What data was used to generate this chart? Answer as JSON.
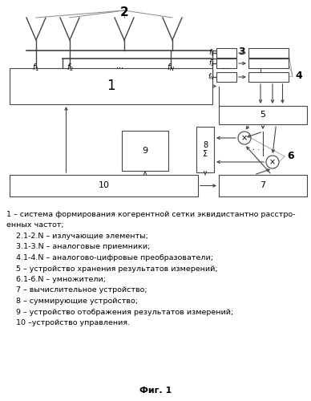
{
  "bg_color": "#ffffff",
  "fig_caption": "Фиг. 1",
  "legend_lines": [
    "1 – система формирования когерентной сетки эквидистантно расстро-",
    "енных частот;",
    "    2.1-2.N – излучающие элементы;",
    "    3.1-3.N – аналоговые приемники;",
    "    4.1-4.N – аналогово-цифровые преобразователи;",
    "    5 – устройство хранения результатов измерений;",
    "    6.1-6.N – умножители;",
    "    7 – вычислительное устройство;",
    "    8 – суммирующие устройство;",
    "    9 – устройство отображения результатов измерений;",
    "    10 –устройство управления."
  ]
}
